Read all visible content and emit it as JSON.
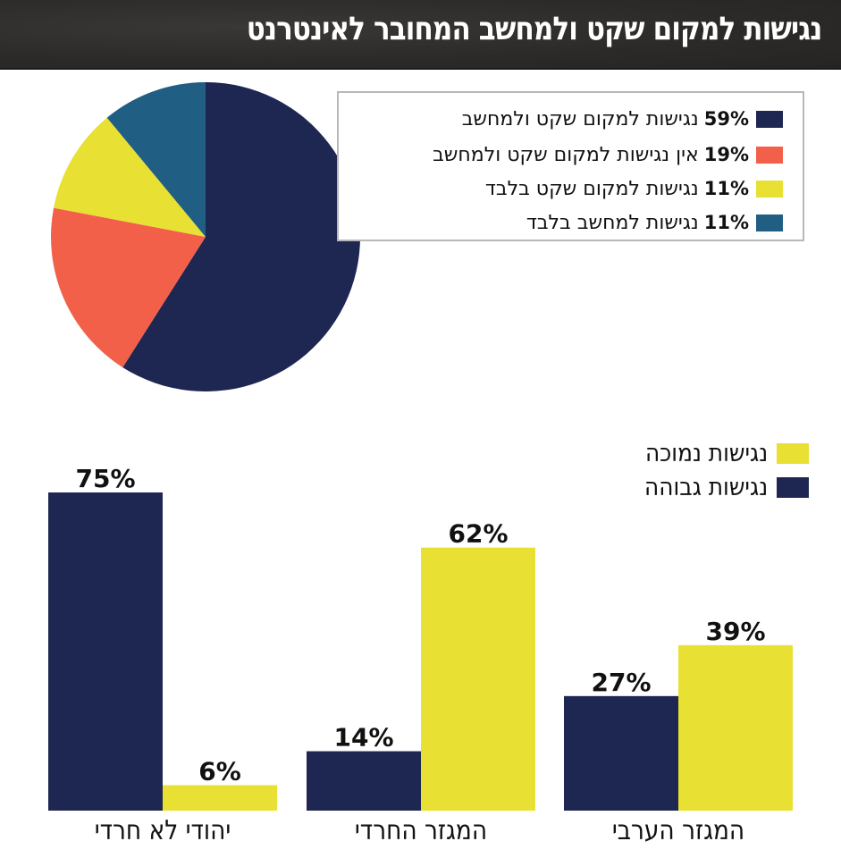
{
  "header": {
    "title": "נגישות למקום שקט ולמחשב המחובר לאינטרנט"
  },
  "colors": {
    "navy": "#1e2652",
    "coral": "#f2604a",
    "yellow": "#e8e033",
    "teal": "#215e84",
    "header_bg": "#2f2d2b"
  },
  "chart_data": [
    {
      "type": "pie",
      "title": "",
      "slices": [
        {
          "label": "נגישות למקום שקט ולמחשב",
          "value": 59,
          "value_label": "59%",
          "color": "#1e2652"
        },
        {
          "label": "אין נגישות למקום שקט ולמחשב",
          "value": 19,
          "value_label": "19%",
          "color": "#f2604a"
        },
        {
          "label": "נגישות למקום שקט בלבד",
          "value": 11,
          "value_label": "11%",
          "color": "#e8e033"
        },
        {
          "label": "נגישות למחשב בלבד",
          "value": 11,
          "value_label": "11%",
          "color": "#215e84"
        }
      ],
      "legend_position": "top-right",
      "start_angle": "12 o'clock",
      "direction": "clockwise"
    },
    {
      "type": "bar",
      "title": "",
      "xlabel": "",
      "ylabel": "",
      "ylim": [
        0,
        75
      ],
      "grid": false,
      "legend_position": "top-right",
      "categories": [
        "יהודי לא חרדי",
        "המגזר החרדי",
        "המגזר הערבי"
      ],
      "series": [
        {
          "name": "נגישות גבוהה",
          "color": "#1e2652",
          "values": [
            75,
            14,
            27
          ],
          "value_labels": [
            "75%",
            "14%",
            "27%"
          ]
        },
        {
          "name": "נגישות נמוכה",
          "color": "#e8e033",
          "values": [
            6,
            62,
            39
          ],
          "value_labels": [
            "6%",
            "62%",
            "39%"
          ]
        }
      ]
    }
  ]
}
